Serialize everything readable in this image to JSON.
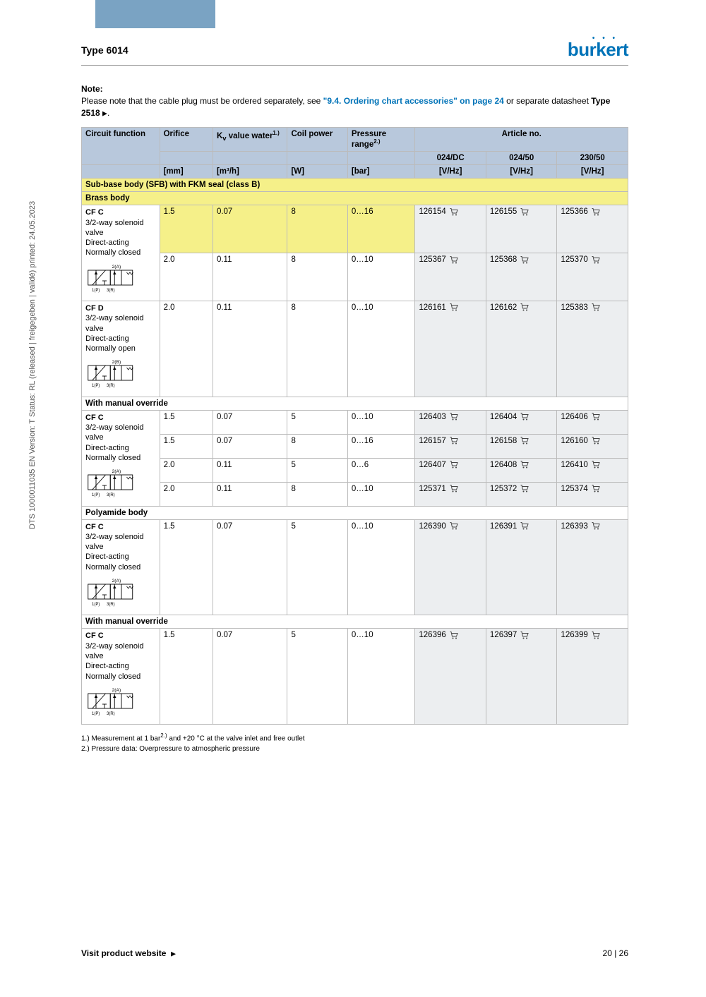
{
  "header": {
    "type_title": "Type 6014",
    "brand": "burkert"
  },
  "note": {
    "label": "Note:",
    "text_before": "Please note that the cable plug must be ordered separately, see ",
    "link_text": "\"9.4. Ordering chart accessories\" on page 24",
    "text_mid": " or separate datasheet ",
    "datasheet": "Type 2518",
    "triangle": "▶",
    "period": "."
  },
  "table": {
    "headers": {
      "circuit": "Circuit function",
      "orifice": "Orifice",
      "kv": "K",
      "kv_sub": "v",
      "kv_rest": " value water",
      "kv_sup": "1.)",
      "coil": "Coil power",
      "pressure": "Pressure range",
      "pressure_sup": "2.)",
      "article": "Article no.",
      "v1": "024/DC",
      "v2": "024/50",
      "v3": "230/50"
    },
    "units": {
      "orifice": "[mm]",
      "kv": "[m³/h]",
      "coil": "[W]",
      "pressure": "[bar]",
      "v": "[V/Hz]"
    },
    "sections": {
      "sfb": "Sub-base body (SFB) with FKM seal (class B)",
      "brass": "Brass body",
      "manual": "With manual override",
      "poly": "Polyamide body"
    },
    "circuit": {
      "cfc": "CF C",
      "cfd": "CF D",
      "desc_nc": [
        "3/2-way solenoid",
        "valve",
        "Direct-acting",
        "Normally closed"
      ],
      "desc_no": [
        "3/2-way solenoid",
        "valve",
        "Direct-acting",
        "Normally open"
      ],
      "port_2a": "2(A)",
      "port_2b": "2(B)",
      "port_1p": "1(P)",
      "port_3r": "3(R)"
    },
    "rows_brass_cfc": [
      {
        "orifice": "1.5",
        "kv": "0.07",
        "coil": "8",
        "press": "0…16",
        "a1": "126154",
        "a2": "126155",
        "a3": "125366",
        "hl": true
      },
      {
        "orifice": "2.0",
        "kv": "0.11",
        "coil": "8",
        "press": "0…10",
        "a1": "125367",
        "a2": "125368",
        "a3": "125370",
        "hl": false
      }
    ],
    "rows_brass_cfd": [
      {
        "orifice": "2.0",
        "kv": "0.11",
        "coil": "8",
        "press": "0…10",
        "a1": "126161",
        "a2": "126162",
        "a3": "125383"
      }
    ],
    "rows_manual_cfc": [
      {
        "orifice": "1.5",
        "kv": "0.07",
        "coil": "5",
        "press": "0…10",
        "a1": "126403",
        "a2": "126404",
        "a3": "126406"
      },
      {
        "orifice": "1.5",
        "kv": "0.07",
        "coil": "8",
        "press": "0…16",
        "a1": "126157",
        "a2": "126158",
        "a3": "126160"
      },
      {
        "orifice": "2.0",
        "kv": "0.11",
        "coil": "5",
        "press": "0…6",
        "a1": "126407",
        "a2": "126408",
        "a3": "126410"
      },
      {
        "orifice": "2.0",
        "kv": "0.11",
        "coil": "8",
        "press": "0…10",
        "a1": "125371",
        "a2": "125372",
        "a3": "125374"
      }
    ],
    "rows_poly_cfc": [
      {
        "orifice": "1.5",
        "kv": "0.07",
        "coil": "5",
        "press": "0…10",
        "a1": "126390",
        "a2": "126391",
        "a3": "126393"
      }
    ],
    "rows_poly_manual_cfc": [
      {
        "orifice": "1.5",
        "kv": "0.07",
        "coil": "5",
        "press": "0…10",
        "a1": "126396",
        "a2": "126397",
        "a3": "126399"
      }
    ]
  },
  "footnotes": {
    "f1": "1.) Measurement at 1 bar",
    "f1_sup": "2.)",
    "f1_rest": " and +20 °C at the valve inlet and free outlet",
    "f2": "2.) Pressure data: Overpressure to atmospheric pressure"
  },
  "side_text": "DTS 1000011035 EN Version: T Status: RL (released | freigegeben | validé) printed: 24.05.2023",
  "footer": {
    "visit": "Visit product website",
    "tri": "▶",
    "page": "20 | 26"
  },
  "colors": {
    "accent": "#7aa3c3",
    "header_bg": "#b8c8dc",
    "highlight": "#f5f089",
    "article_bg": "#eceef0",
    "link": "#0073b8",
    "border": "#bbbbbb"
  }
}
